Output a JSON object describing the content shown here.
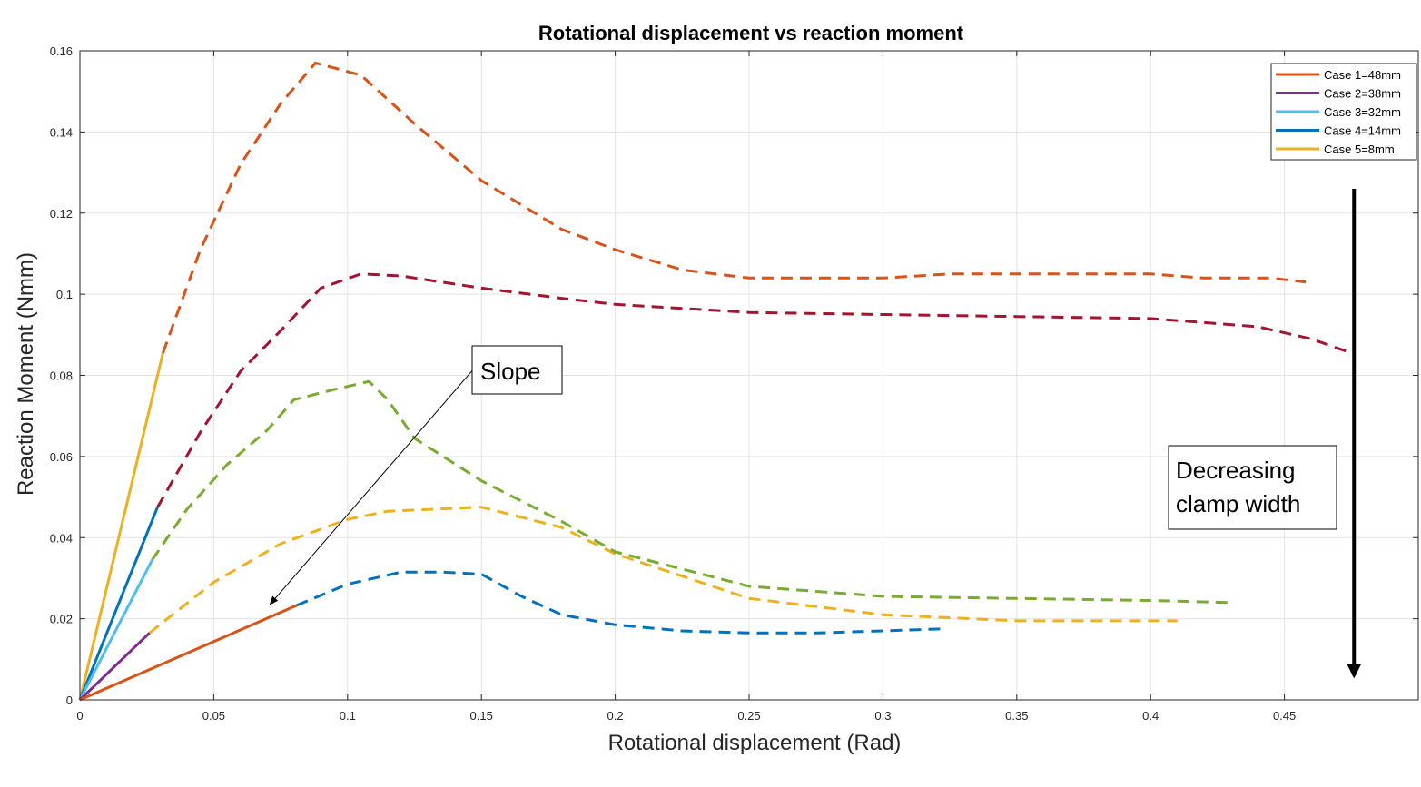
{
  "chart_data": {
    "type": "line",
    "title": "Rotational displacement vs reaction moment",
    "xlabel": "Rotational displacement (Rad)",
    "ylabel": "Reaction Moment (Nmm)",
    "xlim": [
      0,
      0.5
    ],
    "ylim": [
      0,
      0.16
    ],
    "xticks": [
      0,
      0.05,
      0.1,
      0.15,
      0.2,
      0.25,
      0.3,
      0.35,
      0.4,
      0.45
    ],
    "xtick_labels": [
      "0",
      "0.05",
      "0.1",
      "0.15",
      "0.2",
      "0.25",
      "0.3",
      "0.35",
      "0.4",
      "0.45"
    ],
    "yticks": [
      0,
      0.02,
      0.04,
      0.06,
      0.08,
      0.1,
      0.12,
      0.14,
      0.16
    ],
    "ytick_labels": [
      "0",
      "0.02",
      "0.04",
      "0.06",
      "0.08",
      "0.1",
      "0.12",
      "0.14",
      "0.16"
    ],
    "grid": true,
    "legend_position": "top-right",
    "series": [
      {
        "name": "Case 1=48mm",
        "color": "#D95319",
        "style": "solid",
        "x": [
          0,
          0.081
        ],
        "y": [
          0,
          0.0233
        ]
      },
      {
        "name": "Case 2=38mm",
        "color": "#7E2F8E",
        "style": "solid",
        "x": [
          0,
          0.026
        ],
        "y": [
          0,
          0.0165
        ]
      },
      {
        "name": "Case 3=32mm",
        "color": "#4DBEEE",
        "style": "solid",
        "x": [
          0,
          0.027
        ],
        "y": [
          0,
          0.0345
        ]
      },
      {
        "name": "Case 4=14mm",
        "color": "#0072BD",
        "style": "solid",
        "x": [
          0,
          0.029
        ],
        "y": [
          0,
          0.0475
        ]
      },
      {
        "name": "Case 5=8mm",
        "color": "#EDB120",
        "style": "solid",
        "x": [
          0,
          0.031
        ],
        "y": [
          0,
          0.0855
        ]
      },
      {
        "color": "#D95319",
        "style": "dashed",
        "x": [
          0.031,
          0.045,
          0.06,
          0.075,
          0.088,
          0.105,
          0.125,
          0.15,
          0.18,
          0.2,
          0.225,
          0.25,
          0.275,
          0.3,
          0.325,
          0.35,
          0.375,
          0.4,
          0.42,
          0.445,
          0.458
        ],
        "y": [
          0.0855,
          0.111,
          0.132,
          0.147,
          0.157,
          0.154,
          0.142,
          0.128,
          0.116,
          0.111,
          0.106,
          0.104,
          0.104,
          0.104,
          0.105,
          0.105,
          0.105,
          0.105,
          0.104,
          0.104,
          0.103
        ]
      },
      {
        "color": "#A2142F",
        "style": "dashed",
        "x": [
          0.029,
          0.045,
          0.06,
          0.075,
          0.09,
          0.105,
          0.12,
          0.15,
          0.18,
          0.2,
          0.25,
          0.3,
          0.35,
          0.4,
          0.42,
          0.44,
          0.46,
          0.475
        ],
        "y": [
          0.0475,
          0.066,
          0.081,
          0.091,
          0.1015,
          0.105,
          0.1045,
          0.1015,
          0.099,
          0.0975,
          0.0955,
          0.095,
          0.0945,
          0.094,
          0.093,
          0.092,
          0.089,
          0.0855
        ]
      },
      {
        "color": "#77AC30",
        "style": "dashed",
        "x": [
          0.027,
          0.04,
          0.055,
          0.07,
          0.08,
          0.095,
          0.108,
          0.115,
          0.125,
          0.15,
          0.18,
          0.2,
          0.25,
          0.3,
          0.35,
          0.4,
          0.43
        ],
        "y": [
          0.0345,
          0.047,
          0.058,
          0.0665,
          0.074,
          0.0765,
          0.0785,
          0.074,
          0.0645,
          0.054,
          0.044,
          0.0365,
          0.028,
          0.0255,
          0.025,
          0.0245,
          0.024
        ]
      },
      {
        "color": "#EDB120",
        "style": "dashed",
        "x": [
          0.026,
          0.05,
          0.075,
          0.1,
          0.115,
          0.15,
          0.18,
          0.2,
          0.225,
          0.25,
          0.3,
          0.35,
          0.41
        ],
        "y": [
          0.0165,
          0.029,
          0.0385,
          0.0445,
          0.0465,
          0.0475,
          0.0425,
          0.036,
          0.0305,
          0.025,
          0.021,
          0.0195,
          0.0195
        ]
      },
      {
        "color": "#0072BD",
        "style": "dashed",
        "x": [
          0.081,
          0.1,
          0.12,
          0.135,
          0.15,
          0.165,
          0.18,
          0.2,
          0.225,
          0.25,
          0.275,
          0.3,
          0.322
        ],
        "y": [
          0.0233,
          0.0285,
          0.0315,
          0.0315,
          0.031,
          0.0255,
          0.021,
          0.0185,
          0.017,
          0.0165,
          0.0165,
          0.017,
          0.0175
        ]
      }
    ],
    "annotations": {
      "slope_label": "Slope",
      "slope_arrow": {
        "from": [
          0.147,
          0.0815
        ],
        "to": [
          0.071,
          0.0235
        ]
      },
      "decreasing_label": [
        "Decreasing",
        "clamp width"
      ],
      "decreasing_arrow": {
        "from": [
          0.476,
          0.126
        ],
        "to": [
          0.476,
          0.006
        ]
      }
    }
  }
}
